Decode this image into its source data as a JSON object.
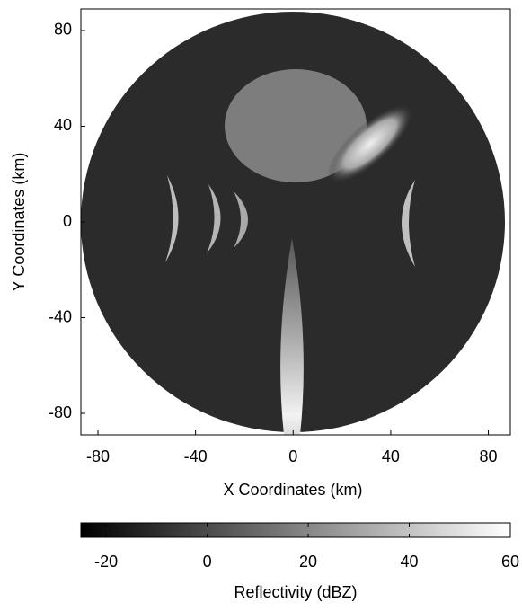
{
  "chart_data": {
    "type": "image",
    "xlabel": "X Coordinates (km)",
    "ylabel": "Y Coordinates (km)",
    "xlim": [
      -87,
      89
    ],
    "ylim": [
      -89,
      89
    ],
    "xticks": [
      -80,
      -40,
      0,
      40,
      80
    ],
    "yticks": [
      -80,
      -40,
      0,
      40,
      80
    ],
    "colormap": [
      "#000000",
      "#ffffff"
    ],
    "colorbar": {
      "label": "Reflectivity (dBZ)",
      "lim": [
        -25,
        60
      ],
      "ticks": [
        -20,
        0,
        20,
        40,
        60
      ]
    }
  }
}
